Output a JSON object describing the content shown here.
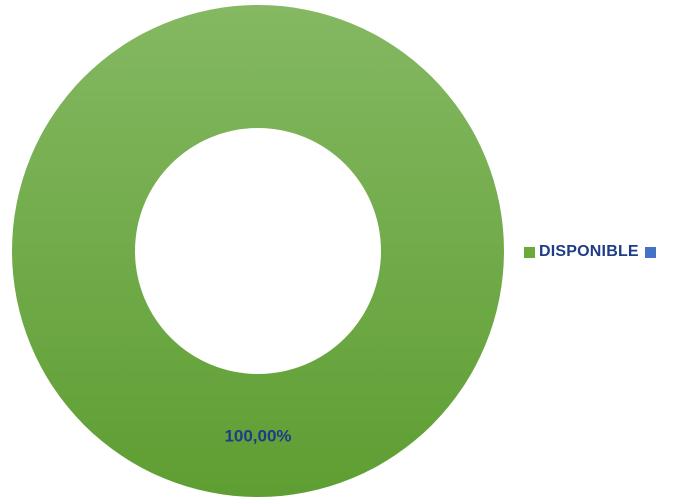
{
  "chart_data": {
    "type": "pie",
    "donut": true,
    "series": [
      {
        "name": "DISPONIBLE",
        "value": 100,
        "label": "100,00%",
        "color": "#6aaa3a",
        "color_light": "#84b862",
        "color_dark": "#5e9e32"
      },
      {
        "name": "",
        "value": 0,
        "label": "",
        "color": "#4472c4"
      }
    ],
    "label_color": "#1f3c88",
    "legend_text_color": "#1f3c88",
    "legend_position": "right"
  }
}
